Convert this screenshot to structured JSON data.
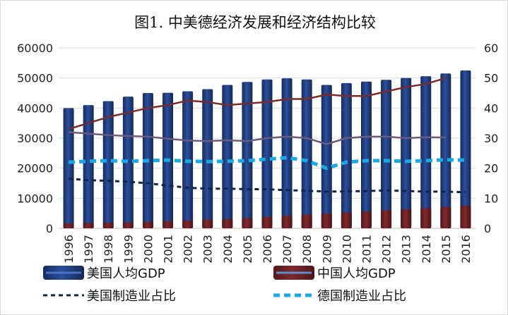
{
  "chart_data": {
    "type": "bar",
    "title": "图1. 中美德经济发展和经济结构比较",
    "categories": [
      "1996",
      "1997",
      "1998",
      "1999",
      "2000",
      "2001",
      "2002",
      "2003",
      "2004",
      "2005",
      "2006",
      "2007",
      "2008",
      "2009",
      "2010",
      "2011",
      "2012",
      "2013",
      "2014",
      "2015",
      "2016"
    ],
    "left_axis": {
      "min": 0,
      "max": 60000,
      "ticks": [
        "0",
        "10000",
        "20000",
        "30000",
        "40000",
        "50000",
        "60000"
      ]
    },
    "right_axis": {
      "min": 0,
      "max": 60,
      "ticks": [
        "0",
        "10",
        "20",
        "30",
        "40",
        "50",
        "60"
      ]
    },
    "grid": true,
    "bar_series": [
      {
        "name": "美国人均GDP",
        "axis": "left",
        "color": "#1f3a7a",
        "values": [
          40000,
          41000,
          42300,
          43800,
          45000,
          45100,
          45600,
          46300,
          47700,
          48700,
          49500,
          49900,
          49500,
          47700,
          48300,
          48800,
          49400,
          50000,
          50600,
          51500,
          52500
        ]
      },
      {
        "name": "中国人均GDP",
        "axis": "left",
        "color": "#6b1f24",
        "values": [
          1600,
          1800,
          1900,
          2000,
          2200,
          2400,
          2600,
          2900,
          3100,
          3400,
          3800,
          4200,
          4600,
          4900,
          5300,
          5600,
          6000,
          6300,
          6700,
          7100,
          7500
        ]
      }
    ],
    "line_series": [
      {
        "name": "",
        "axis": "right",
        "color": "#7a2c2c",
        "style": "solid",
        "values": [
          33,
          35,
          37,
          38.5,
          40,
          41,
          42.5,
          42,
          41,
          41.5,
          42,
          43,
          43,
          44.5,
          44,
          44,
          45.5,
          47,
          48,
          50,
          null
        ]
      },
      {
        "name": "",
        "axis": "right",
        "color": "#6e5a7a",
        "style": "solid",
        "values": [
          32,
          31.5,
          31,
          30.7,
          30.5,
          29.8,
          29.2,
          29,
          29.3,
          29,
          30,
          30.5,
          30,
          28,
          30,
          30.5,
          30.5,
          30,
          30.3,
          30.2,
          null
        ]
      },
      {
        "name": "美国制造业占比",
        "axis": "right",
        "color": "#12254f",
        "style": "dash",
        "values": [
          16.5,
          16,
          15.8,
          15.5,
          15,
          14.2,
          13.5,
          13.2,
          13.2,
          13,
          13,
          12.7,
          12.5,
          12.2,
          12.3,
          12.4,
          12.6,
          12.4,
          12.2,
          12.2,
          12
        ]
      },
      {
        "name": "德国制造业占比",
        "axis": "right",
        "color": "#19a9e6",
        "style": "dash",
        "values": [
          22,
          22.3,
          22.5,
          22.3,
          22.5,
          22.7,
          22.3,
          22.2,
          22.3,
          22.5,
          23,
          23.5,
          22.5,
          20,
          22,
          22.5,
          22.5,
          22.3,
          22.5,
          22.8,
          22.7
        ]
      }
    ],
    "legend": {
      "placement": "bottom",
      "items": [
        {
          "label": "美国人均GDP",
          "kind": "bar",
          "color": "#1f3a7a"
        },
        {
          "label": "中国人均GDP",
          "kind": "bar",
          "color": "#6b1f24"
        },
        {
          "label": "美国制造业占比",
          "kind": "dash",
          "color": "#12254f"
        },
        {
          "label": "德国制造业占比",
          "kind": "dash",
          "color": "#19a9e6"
        }
      ]
    }
  }
}
